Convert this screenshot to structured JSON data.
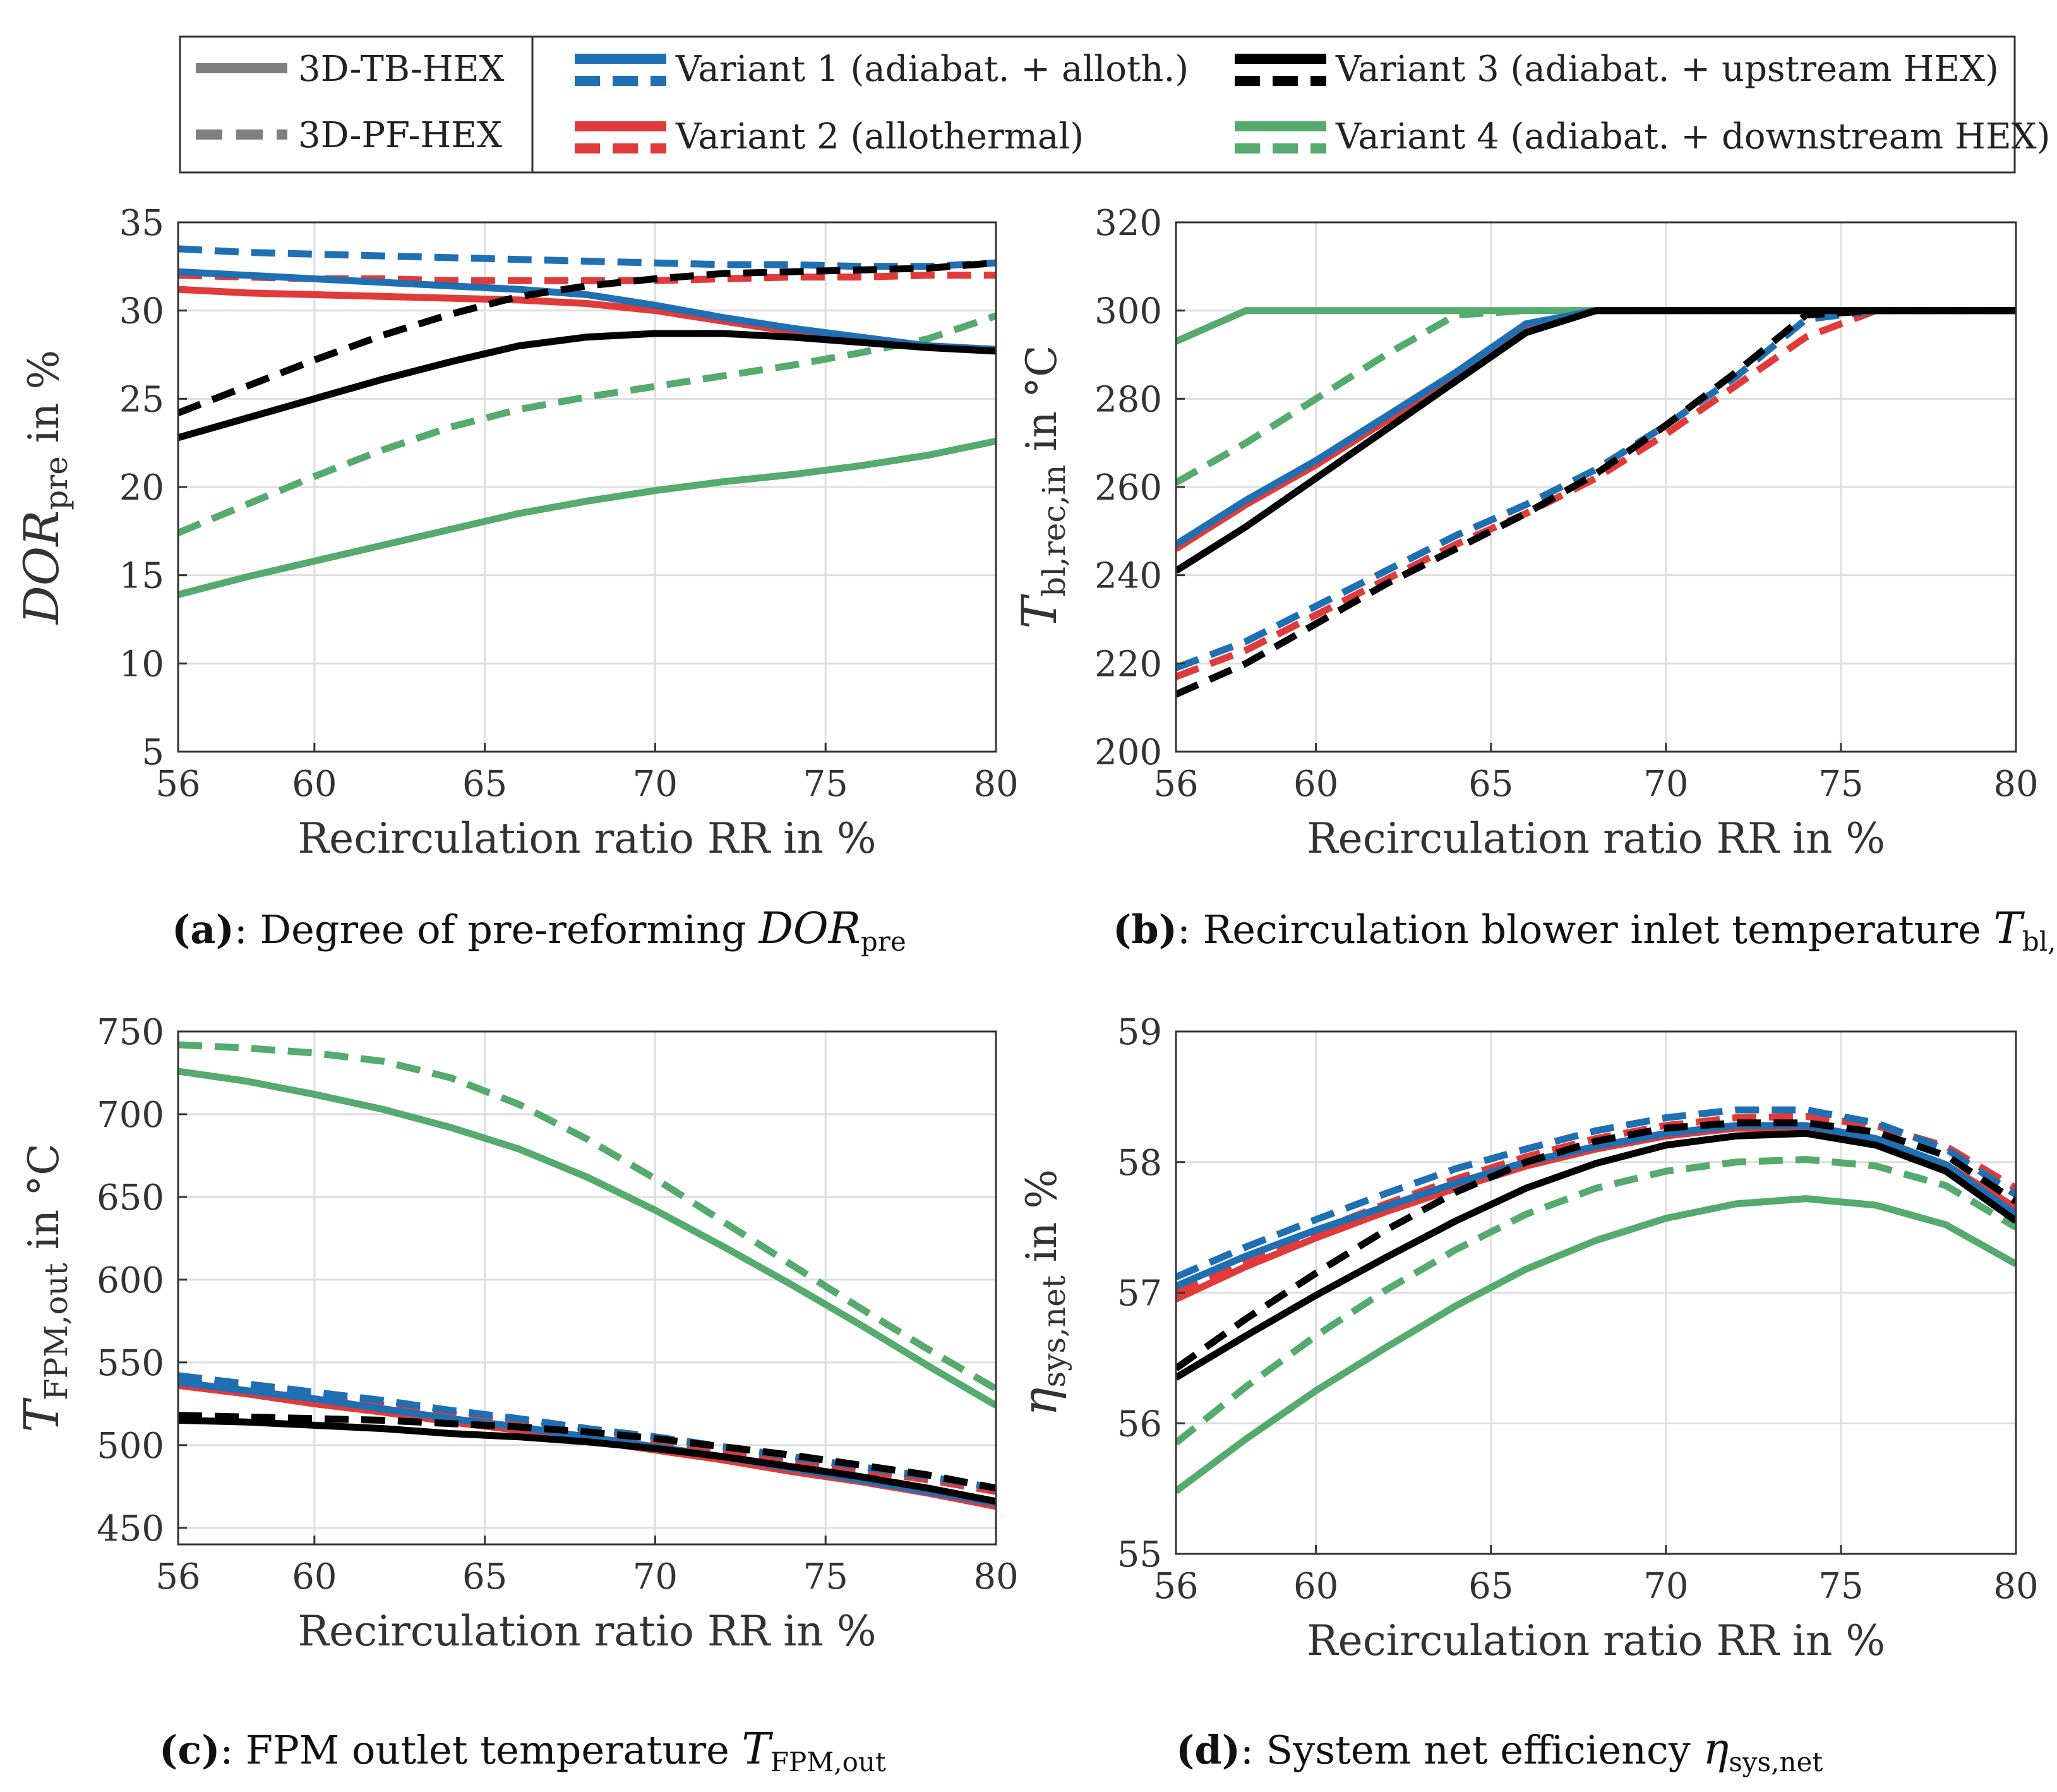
{
  "colors": {
    "variant_1": "#1f6fb3",
    "variant_2": "#e03a3a",
    "variant_3": "#000000",
    "variant_4": "#55aa6e",
    "legend_gray": "#7f7f7f"
  },
  "legend": {
    "styles": [
      {
        "label": "3D-TB-HEX",
        "dash": "solid"
      },
      {
        "label": "3D-PF-HEX",
        "dash": "dashed"
      }
    ],
    "variants": [
      {
        "label": "Variant 1 (adiabat. + alloth.)",
        "color_key": "variant_1"
      },
      {
        "label": "Variant 2 (allothermal)",
        "color_key": "variant_2"
      },
      {
        "label": "Variant 3 (adiabat. + upstream HEX)",
        "color_key": "variant_3"
      },
      {
        "label": "Variant 4 (adiabat. + downstream HEX)",
        "color_key": "variant_4"
      }
    ]
  },
  "chart_data": [
    {
      "type": "line",
      "caption_letter": "(a)",
      "caption_text": ": Degree of pre-reforming ",
      "caption_symbol": "DOR",
      "caption_sub": "pre",
      "xlabel": "Recirculation ratio RR in %",
      "ylabel_symbol": "DOR",
      "ylabel_sub": "pre",
      "ylabel_suffix": " in %",
      "xlim": [
        56,
        80
      ],
      "ylim": [
        5,
        35
      ],
      "xticks": [
        56,
        60,
        65,
        70,
        75,
        80
      ],
      "yticks": [
        5,
        10,
        15,
        20,
        25,
        30,
        35
      ],
      "x": [
        56,
        58,
        60,
        62,
        64,
        66,
        68,
        70,
        72,
        74,
        76,
        78,
        80
      ],
      "series": [
        {
          "name": "Variant 1 3D-TB-HEX",
          "variant": "variant_1",
          "dash": "solid",
          "values": [
            32.2,
            32.0,
            31.8,
            31.6,
            31.4,
            31.2,
            30.9,
            30.3,
            29.6,
            29.0,
            28.5,
            28.0,
            27.8
          ]
        },
        {
          "name": "Variant 1 3D-PF-HEX",
          "variant": "variant_1",
          "dash": "dashed",
          "values": [
            33.5,
            33.3,
            33.2,
            33.1,
            33.0,
            32.9,
            32.8,
            32.7,
            32.6,
            32.6,
            32.5,
            32.5,
            32.7
          ]
        },
        {
          "name": "Variant 2 3D-TB-HEX",
          "variant": "variant_2",
          "dash": "solid",
          "values": [
            31.2,
            31.0,
            30.9,
            30.8,
            30.7,
            30.6,
            30.4,
            30.0,
            29.4,
            28.8,
            28.3,
            28.0,
            27.8
          ]
        },
        {
          "name": "Variant 2 3D-PF-HEX",
          "variant": "variant_2",
          "dash": "dashed",
          "values": [
            32.0,
            31.9,
            31.8,
            31.8,
            31.7,
            31.7,
            31.7,
            31.7,
            31.8,
            31.9,
            31.9,
            32.0,
            32.0
          ]
        },
        {
          "name": "Variant 3 3D-TB-HEX",
          "variant": "variant_3",
          "dash": "solid",
          "values": [
            22.8,
            23.9,
            25.0,
            26.1,
            27.1,
            28.0,
            28.5,
            28.7,
            28.7,
            28.5,
            28.2,
            27.9,
            27.7
          ]
        },
        {
          "name": "Variant 3 3D-PF-HEX",
          "variant": "variant_3",
          "dash": "dashed",
          "values": [
            24.2,
            25.7,
            27.2,
            28.6,
            29.8,
            30.8,
            31.4,
            31.8,
            32.1,
            32.2,
            32.3,
            32.4,
            32.7
          ]
        },
        {
          "name": "Variant 4 3D-TB-HEX",
          "variant": "variant_4",
          "dash": "solid",
          "values": [
            13.9,
            14.9,
            15.8,
            16.7,
            17.6,
            18.5,
            19.2,
            19.8,
            20.3,
            20.7,
            21.2,
            21.8,
            22.6
          ]
        },
        {
          "name": "Variant 4 3D-PF-HEX",
          "variant": "variant_4",
          "dash": "dashed",
          "values": [
            17.4,
            19.0,
            20.6,
            22.1,
            23.4,
            24.4,
            25.1,
            25.7,
            26.3,
            26.9,
            27.6,
            28.4,
            29.7
          ]
        }
      ]
    },
    {
      "type": "line",
      "caption_letter": "(b)",
      "caption_text": ": Recirculation blower inlet temperature ",
      "caption_symbol": "T",
      "caption_sub": "bl,rec,in",
      "xlabel": "Recirculation ratio RR in %",
      "ylabel_symbol": "T",
      "ylabel_sub": "bl,rec,in",
      "ylabel_suffix": " in °C",
      "xlim": [
        56,
        80
      ],
      "ylim": [
        200,
        320
      ],
      "xticks": [
        56,
        60,
        65,
        70,
        75,
        80
      ],
      "yticks": [
        200,
        220,
        240,
        260,
        280,
        300,
        320
      ],
      "x": [
        56,
        58,
        60,
        62,
        64,
        66,
        68,
        70,
        72,
        74,
        76,
        78,
        80
      ],
      "series": [
        {
          "name": "Variant 1 3D-TB-HEX",
          "variant": "variant_1",
          "dash": "solid",
          "values": [
            247,
            257,
            266,
            276,
            286,
            297,
            300,
            300,
            300,
            300,
            300,
            300,
            300
          ]
        },
        {
          "name": "Variant 1 3D-PF-HEX",
          "variant": "variant_1",
          "dash": "dashed",
          "values": [
            219,
            225,
            233,
            241,
            249,
            256,
            264,
            274,
            285,
            298,
            300,
            300,
            300
          ]
        },
        {
          "name": "Variant 2 3D-TB-HEX",
          "variant": "variant_2",
          "dash": "solid",
          "values": [
            246,
            256,
            265,
            275,
            285,
            296,
            300,
            300,
            300,
            300,
            300,
            300,
            300
          ]
        },
        {
          "name": "Variant 2 3D-PF-HEX",
          "variant": "variant_2",
          "dash": "dashed",
          "values": [
            217,
            223,
            231,
            239,
            247,
            254,
            262,
            272,
            283,
            294,
            300,
            300,
            300
          ]
        },
        {
          "name": "Variant 3 3D-TB-HEX",
          "variant": "variant_3",
          "dash": "solid",
          "values": [
            241,
            251,
            262,
            273,
            284,
            295,
            300,
            300,
            300,
            300,
            300,
            300,
            300
          ]
        },
        {
          "name": "Variant 3 3D-PF-HEX",
          "variant": "variant_3",
          "dash": "dashed",
          "values": [
            213,
            220,
            229,
            238,
            246,
            254,
            263,
            274,
            286,
            299,
            300,
            300,
            300
          ]
        },
        {
          "name": "Variant 4 3D-TB-HEX",
          "variant": "variant_4",
          "dash": "solid",
          "values": [
            293,
            300,
            300,
            300,
            300,
            300,
            300,
            300,
            300,
            300,
            300,
            300,
            300
          ]
        },
        {
          "name": "Variant 4 3D-PF-HEX",
          "variant": "variant_4",
          "dash": "dashed",
          "values": [
            261,
            270,
            280,
            290,
            299,
            300,
            300,
            300,
            300,
            300,
            300,
            300,
            300
          ]
        }
      ]
    },
    {
      "type": "line",
      "caption_letter": "(c)",
      "caption_text": ": FPM outlet temperature ",
      "caption_symbol": "T",
      "caption_sub": "FPM,out",
      "xlabel": "Recirculation ratio RR in %",
      "ylabel_symbol": "T",
      "ylabel_sub": "FPM,out",
      "ylabel_suffix": " in °C",
      "xlim": [
        56,
        80
      ],
      "ylim": [
        440,
        750
      ],
      "xticks": [
        56,
        60,
        65,
        70,
        75,
        80
      ],
      "yticks": [
        450,
        500,
        550,
        600,
        650,
        700,
        750
      ],
      "x": [
        56,
        58,
        60,
        62,
        64,
        66,
        68,
        70,
        72,
        74,
        76,
        78,
        80
      ],
      "series": [
        {
          "name": "Variant 1 3D-TB-HEX",
          "variant": "variant_1",
          "dash": "solid",
          "values": [
            538,
            533,
            528,
            522,
            516,
            511,
            505,
            499,
            493,
            486,
            479,
            472,
            465
          ]
        },
        {
          "name": "Variant 1 3D-PF-HEX",
          "variant": "variant_1",
          "dash": "dashed",
          "values": [
            542,
            537,
            532,
            527,
            521,
            516,
            510,
            505,
            499,
            493,
            487,
            481,
            474
          ]
        },
        {
          "name": "Variant 2 3D-TB-HEX",
          "variant": "variant_2",
          "dash": "solid",
          "values": [
            536,
            531,
            525,
            520,
            514,
            509,
            503,
            497,
            491,
            484,
            478,
            471,
            463
          ]
        },
        {
          "name": "Variant 2 3D-PF-HEX",
          "variant": "variant_2",
          "dash": "dashed",
          "values": [
            539,
            534,
            529,
            524,
            519,
            513,
            508,
            502,
            496,
            491,
            485,
            479,
            472
          ]
        },
        {
          "name": "Variant 3 3D-TB-HEX",
          "variant": "variant_3",
          "dash": "solid",
          "values": [
            515,
            514,
            512,
            510,
            507,
            505,
            502,
            498,
            493,
            487,
            481,
            474,
            466
          ]
        },
        {
          "name": "Variant 3 3D-PF-HEX",
          "variant": "variant_3",
          "dash": "dashed",
          "values": [
            518,
            517,
            516,
            515,
            513,
            511,
            508,
            504,
            499,
            494,
            488,
            482,
            474
          ]
        },
        {
          "name": "Variant 4 3D-TB-HEX",
          "variant": "variant_4",
          "dash": "solid",
          "values": [
            726,
            720,
            712,
            703,
            692,
            679,
            662,
            642,
            620,
            597,
            573,
            548,
            524
          ]
        },
        {
          "name": "Variant 4 3D-PF-HEX",
          "variant": "variant_4",
          "dash": "dashed",
          "values": [
            742,
            740,
            737,
            732,
            722,
            706,
            685,
            661,
            635,
            609,
            583,
            558,
            534
          ]
        }
      ]
    },
    {
      "type": "line",
      "caption_letter": "(d)",
      "caption_text": ": System net efficiency ",
      "caption_symbol": "η",
      "caption_sub": "sys,net",
      "xlabel": "Recirculation ratio RR in %",
      "ylabel_symbol": "η",
      "ylabel_sub": "sys,net",
      "ylabel_suffix": " in %",
      "xlim": [
        56,
        80
      ],
      "ylim": [
        55,
        59
      ],
      "xticks": [
        56,
        60,
        65,
        70,
        75,
        80
      ],
      "yticks": [
        55,
        56,
        57,
        58,
        59
      ],
      "x": [
        56,
        58,
        60,
        62,
        64,
        66,
        68,
        70,
        72,
        74,
        76,
        78,
        80
      ],
      "series": [
        {
          "name": "Variant 1 3D-TB-HEX",
          "variant": "variant_1",
          "dash": "solid",
          "values": [
            57.05,
            57.28,
            57.48,
            57.66,
            57.84,
            58.0,
            58.12,
            58.22,
            58.28,
            58.28,
            58.18,
            57.98,
            57.6
          ]
        },
        {
          "name": "Variant 1 3D-PF-HEX",
          "variant": "variant_1",
          "dash": "dashed",
          "values": [
            57.12,
            57.35,
            57.56,
            57.76,
            57.95,
            58.1,
            58.24,
            58.34,
            58.4,
            58.4,
            58.3,
            58.1,
            57.75
          ]
        },
        {
          "name": "Variant 2 3D-TB-HEX",
          "variant": "variant_2",
          "dash": "solid",
          "values": [
            56.95,
            57.2,
            57.42,
            57.62,
            57.8,
            57.97,
            58.1,
            58.2,
            58.26,
            58.25,
            58.17,
            57.98,
            57.65
          ]
        },
        {
          "name": "Variant 2 3D-PF-HEX",
          "variant": "variant_2",
          "dash": "dashed",
          "values": [
            57.0,
            57.24,
            57.47,
            57.68,
            57.87,
            58.04,
            58.18,
            58.28,
            58.34,
            58.35,
            58.28,
            58.12,
            57.8
          ]
        },
        {
          "name": "Variant 3 3D-TB-HEX",
          "variant": "variant_3",
          "dash": "solid",
          "values": [
            56.35,
            56.67,
            56.98,
            57.27,
            57.55,
            57.8,
            57.99,
            58.13,
            58.2,
            58.22,
            58.13,
            57.93,
            57.55
          ]
        },
        {
          "name": "Variant 3 3D-PF-HEX",
          "variant": "variant_3",
          "dash": "dashed",
          "values": [
            56.42,
            56.8,
            57.15,
            57.48,
            57.77,
            58.0,
            58.16,
            58.26,
            58.3,
            58.3,
            58.23,
            58.05,
            57.7
          ]
        },
        {
          "name": "Variant 4 3D-TB-HEX",
          "variant": "variant_4",
          "dash": "solid",
          "values": [
            55.48,
            55.88,
            56.25,
            56.58,
            56.9,
            57.18,
            57.4,
            57.57,
            57.68,
            57.72,
            57.67,
            57.52,
            57.22
          ]
        },
        {
          "name": "Variant 4 3D-PF-HEX",
          "variant": "variant_4",
          "dash": "dashed",
          "values": [
            55.85,
            56.28,
            56.67,
            57.02,
            57.33,
            57.6,
            57.8,
            57.93,
            58.0,
            58.02,
            57.97,
            57.82,
            57.5
          ]
        }
      ]
    }
  ]
}
